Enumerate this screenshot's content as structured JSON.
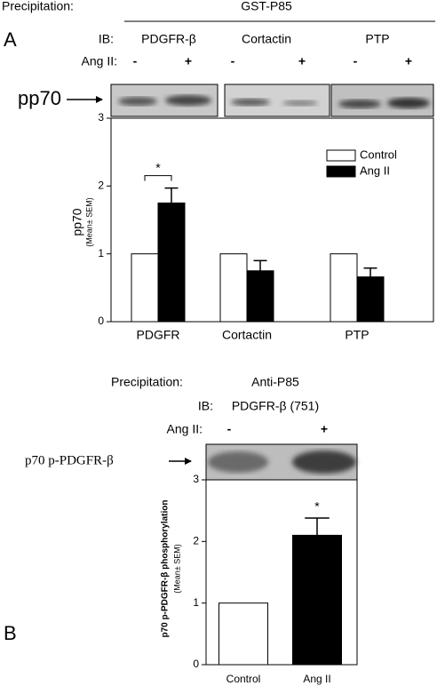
{
  "chart_data": [
    {
      "type": "bar",
      "panel": "A",
      "header": {
        "precipitation_label": "Precipitation:",
        "precipitation": "GST-P85",
        "ib_label": "IB:",
        "ib": [
          "PDGFR-β",
          "Cortactin",
          "PTP"
        ],
        "treatment_label": "Ang II:",
        "treatment": [
          "-",
          "+",
          "-",
          "+",
          "-",
          "+"
        ]
      },
      "blot_label": "pp70",
      "ylabel": "pp70",
      "ylabel_note": "(Mean± SEM)",
      "categories": [
        "PDGFR",
        "Cortactin",
        "PTP"
      ],
      "series": [
        {
          "name": "Control",
          "color": "#ffffff",
          "values": [
            1,
            1,
            1
          ]
        },
        {
          "name": "Ang II",
          "color": "#000000",
          "values": [
            1.75,
            0.75,
            0.66
          ],
          "errors": [
            0.22,
            0.15,
            0.13
          ]
        }
      ],
      "ylim": [
        0,
        3
      ],
      "yticks": [
        0,
        1,
        2,
        3
      ],
      "legend": "upper right",
      "significance": "*"
    },
    {
      "type": "bar",
      "panel": "B",
      "header": {
        "precipitation_label": "Precipitation:",
        "precipitation": "Anti-P85",
        "ib_label": "IB:",
        "ib": [
          "PDGFR-β (751)"
        ],
        "treatment_label": "Ang II:",
        "treatment": [
          "-",
          "+"
        ]
      },
      "blot_label": "p70 p-PDGFR-β",
      "ylabel": "p70 p-PDGFR-β phosphorylation",
      "ylabel_note": "(Mean± SEM)",
      "categories": [
        "Control",
        "Ang II"
      ],
      "values": [
        1,
        2.1
      ],
      "errors": [
        null,
        0.28
      ],
      "colors": [
        "#ffffff",
        "#000000"
      ],
      "ylim": [
        0,
        3
      ],
      "yticks": [
        0,
        1,
        2,
        3
      ],
      "significance": "*"
    }
  ]
}
